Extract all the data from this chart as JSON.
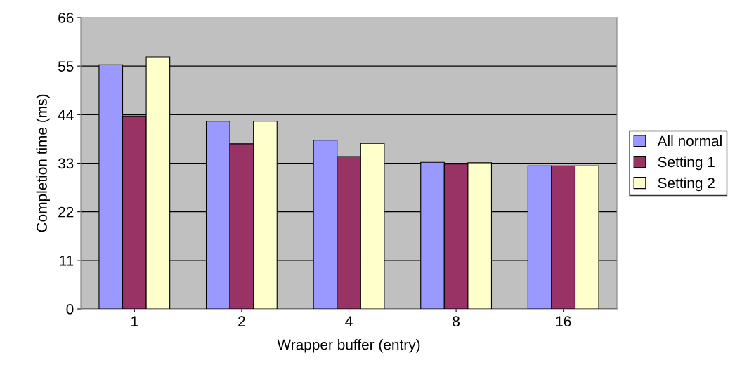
{
  "chart_data": {
    "type": "bar",
    "xlabel": "Wrapper buffer (entry)",
    "ylabel": "Completion time (ms)",
    "categories": [
      "1",
      "2",
      "4",
      "8",
      "16"
    ],
    "series": [
      {
        "name": "All normal",
        "color": "#9999ff",
        "values": [
          55.3,
          42.5,
          38.2,
          33.2,
          32.4
        ]
      },
      {
        "name": "Setting 1",
        "color": "#993366",
        "values": [
          43.7,
          37.4,
          34.5,
          32.8,
          32.4
        ]
      },
      {
        "name": "Setting 2",
        "color": "#ffffcc",
        "values": [
          57.1,
          42.5,
          37.5,
          33.1,
          32.4
        ]
      }
    ],
    "ylim": [
      0,
      66
    ],
    "yticks": [
      0,
      11,
      22,
      33,
      44,
      55,
      66
    ],
    "grid": "y",
    "legend": "right"
  }
}
